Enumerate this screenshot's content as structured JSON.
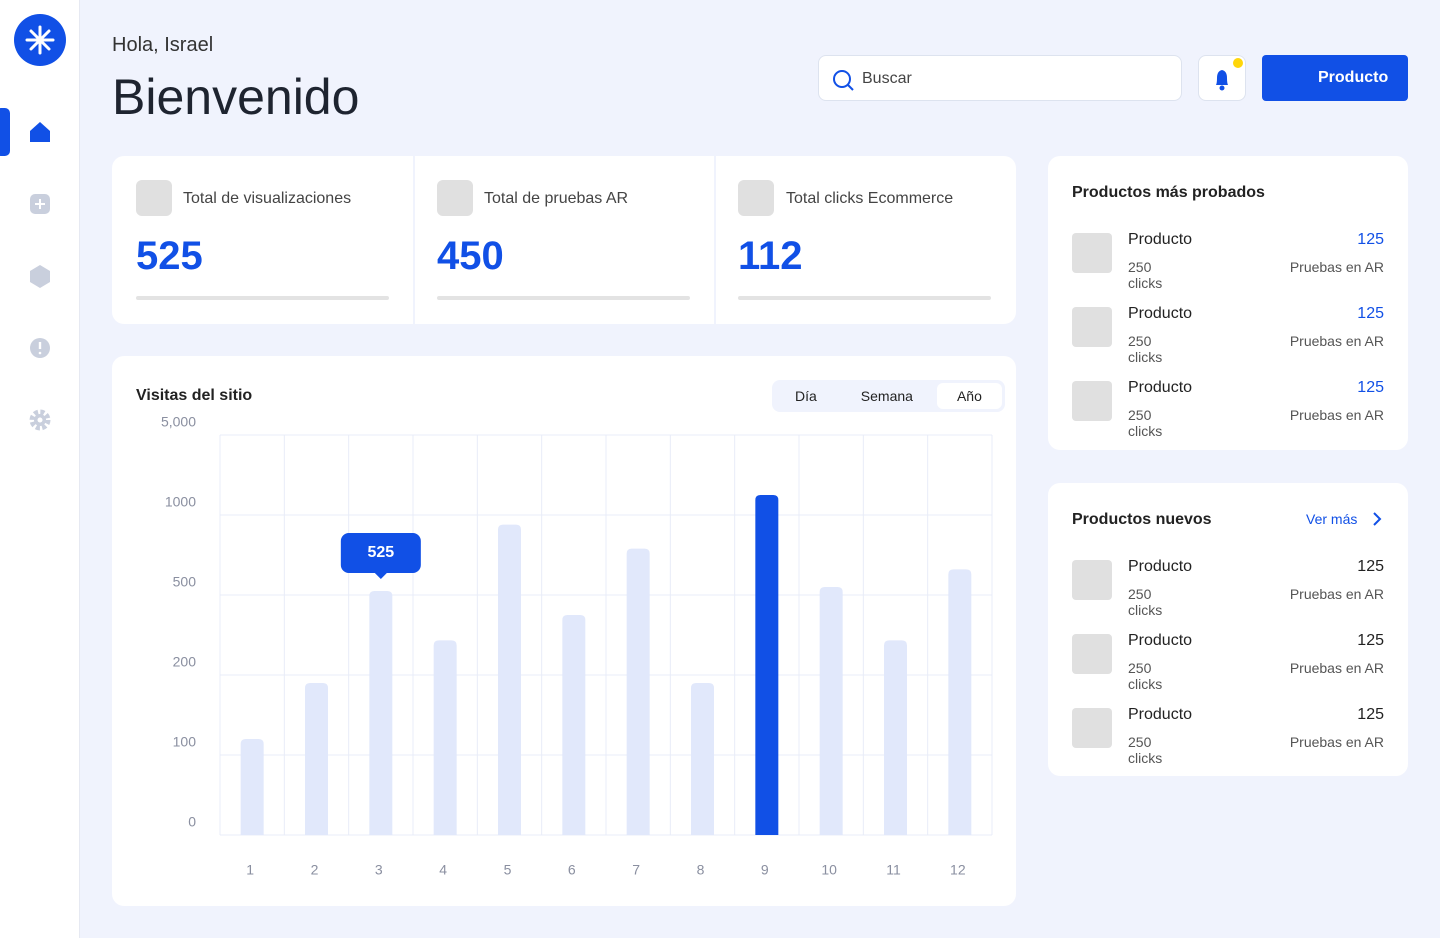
{
  "header": {
    "greeting": "Hola, Israel",
    "title": "Bienvenido",
    "search_placeholder": "Buscar",
    "button": "Producto"
  },
  "stats": [
    {
      "label": "Total de visualizaciones",
      "value": 525
    },
    {
      "label": "Total de pruebas AR",
      "value": 450
    },
    {
      "label": "Total clicks Ecommerce",
      "value": 112
    }
  ],
  "chart_controls": {
    "periods": [
      "Día",
      "Semana",
      "Año"
    ],
    "selected": 2
  },
  "chart_data": {
    "type": "bar",
    "title": "Visitas del sitio",
    "categories": [
      "1",
      "2",
      "3",
      "4",
      "5",
      "6",
      "7",
      "8",
      "9",
      "10",
      "11",
      "12"
    ],
    "values": [
      120,
      190,
      525,
      330,
      940,
      425,
      790,
      190,
      2000,
      550,
      330,
      660
    ],
    "color": "#e1e8fb",
    "highlight_color": "#1150e6",
    "highlight_index": 8,
    "tooltip_index": 2,
    "ylim": [
      0,
      5000
    ],
    "yticks": [
      0,
      100,
      200,
      500,
      1000,
      {
        "value": 5000,
        "label": "5,000"
      }
    ],
    "grid": true
  },
  "top_products": {
    "title": "Productos más probados",
    "items": [
      {
        "name": "Producto",
        "clicks": "250 clicks",
        "value": 125,
        "value_label": "Pruebas en AR"
      },
      {
        "name": "Producto",
        "clicks": "250 clicks",
        "value": 125,
        "value_label": "Pruebas en AR"
      },
      {
        "name": "Producto",
        "clicks": "250 clicks",
        "value": 125,
        "value_label": "Pruebas en AR"
      }
    ]
  },
  "new_products": {
    "title": "Productos nuevos",
    "link": "Ver más",
    "items": [
      {
        "name": "Producto",
        "clicks": "250 clicks",
        "value": 125,
        "value_label": "Pruebas en AR"
      },
      {
        "name": "Producto",
        "clicks": "250 clicks",
        "value": 125,
        "value_label": "Pruebas en AR"
      },
      {
        "name": "Producto",
        "clicks": "250 clicks",
        "value": 125,
        "value_label": "Pruebas en AR"
      }
    ]
  }
}
